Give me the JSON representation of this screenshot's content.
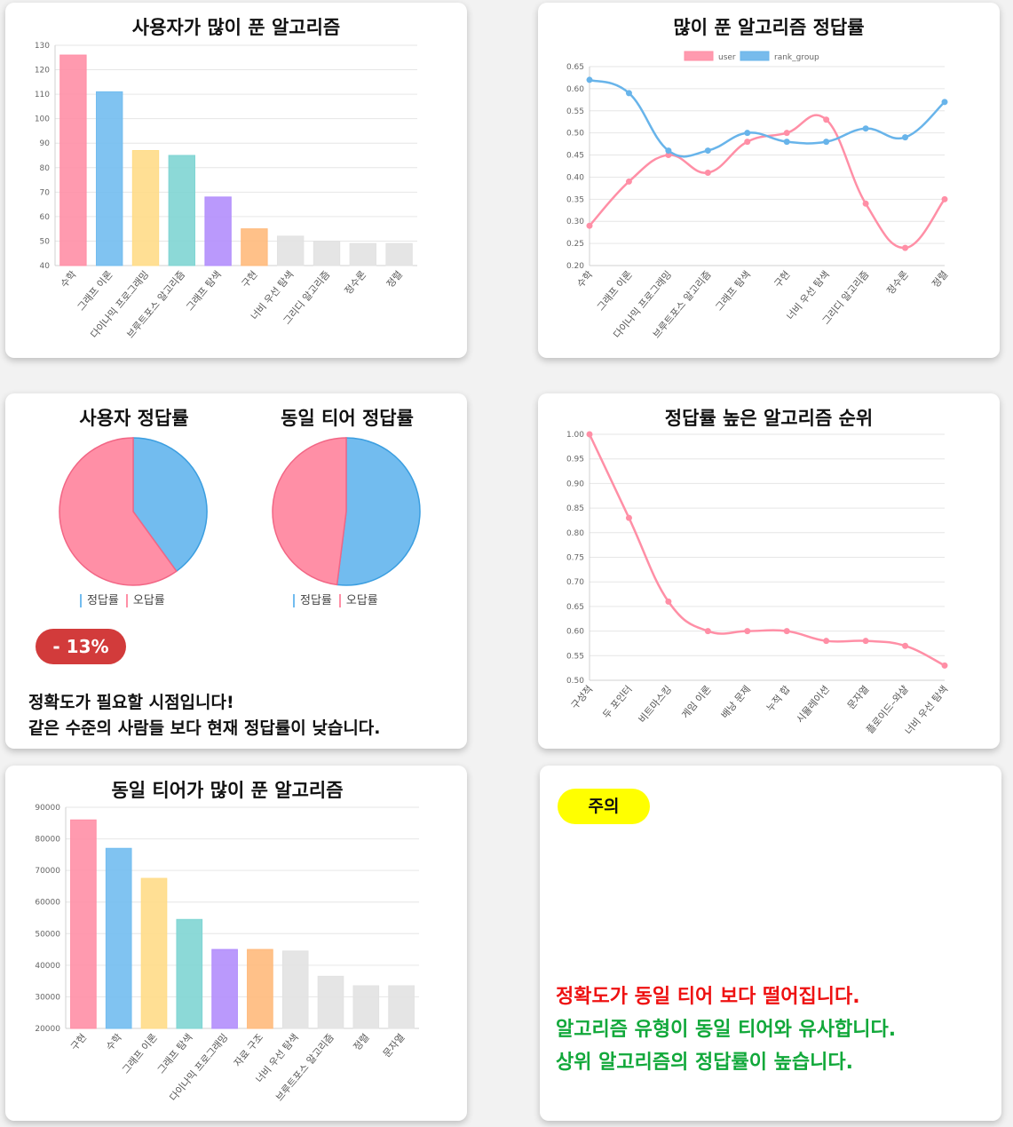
{
  "colors": {
    "palette": [
      "#ff8fa6",
      "#72bcef",
      "#ffdc88",
      "#7fd5d3",
      "#b28efc",
      "#ffba7c",
      "#e2e2e2",
      "#e2e2e2",
      "#e2e2e2",
      "#e2e2e2"
    ],
    "user_line": "#ff8fa6",
    "rank_line": "#68b4ea",
    "pie_correct": "#72bcef",
    "pie_wrong": "#ff8fa6",
    "badge": "#d23b3b",
    "tag": "#ffff00",
    "warn_red": "#ee1111",
    "warn_green": "#11a83a"
  },
  "card1": {
    "title": "사용자가 많이 푼 알고리즘"
  },
  "card2": {
    "title": "많이 푼 알고리즘 정답률"
  },
  "card3": {
    "pie1_title": "사용자 정답률",
    "pie2_title": "동일 티어 정답률",
    "legend": {
      "correct": "정답률",
      "wrong": "오답률"
    },
    "badge": "- 13%",
    "line1": "정확도가 필요할 시점입니다!",
    "line2": "같은 수준의 사람들 보다 현재 정답률이 낮습니다."
  },
  "card4": {
    "title": "정답률 높은 알고리즘 순위"
  },
  "card5": {
    "title": "동일 티어가 많이 푼 알고리즘"
  },
  "card6": {
    "tag": "주의",
    "line1": "정확도가 동일 티어 보다 떨어집니다.",
    "line2": "알고리즘 유형이 동일 티어와 유사합니다.",
    "line3": "상위 알고리즘의 정답률이 높습니다."
  },
  "chart_data": [
    {
      "id": "user-most-solved",
      "type": "bar",
      "title": "사용자가 많이 푼 알고리즘",
      "categories": [
        "수학",
        "그래프 이론",
        "다이나믹 프로그래밍",
        "브루트포스 알고리즘",
        "그래프 탐색",
        "구현",
        "너비 우선 탐색",
        "그리디 알고리즘",
        "정수론",
        "정렬"
      ],
      "values": [
        126,
        111,
        87,
        85,
        68,
        55,
        52,
        50,
        49,
        49
      ],
      "ylim": [
        40,
        130
      ],
      "yticks": [
        40,
        50,
        60,
        70,
        80,
        90,
        100,
        110,
        120,
        130
      ]
    },
    {
      "id": "most-solved-accuracy",
      "type": "line",
      "title": "많이 푼 알고리즘 정답률",
      "categories": [
        "수학",
        "그래프 이론",
        "다이나믹 프로그래밍",
        "브루트포스 알고리즘",
        "그래프 탐색",
        "구현",
        "너비 우선 탐색",
        "그리디 알고리즘",
        "정수론",
        "정렬"
      ],
      "series": [
        {
          "name": "user",
          "values": [
            0.29,
            0.39,
            0.45,
            0.41,
            0.48,
            0.5,
            0.53,
            0.34,
            0.24,
            0.35
          ]
        },
        {
          "name": "rank_group",
          "values": [
            0.62,
            0.59,
            0.46,
            0.46,
            0.5,
            0.48,
            0.48,
            0.51,
            0.49,
            0.57
          ]
        }
      ],
      "ylim": [
        0.2,
        0.65
      ],
      "yticks": [
        "0.20",
        "0.25",
        "0.30",
        "0.35",
        "0.40",
        "0.45",
        "0.50",
        "0.55",
        "0.60",
        "0.65"
      ],
      "legend": "top"
    },
    {
      "id": "user-accuracy",
      "type": "pie",
      "title": "사용자 정답률",
      "labels": [
        "정답률",
        "오답률"
      ],
      "values": [
        0.4,
        0.6
      ]
    },
    {
      "id": "tier-accuracy",
      "type": "pie",
      "title": "동일 티어 정답률",
      "labels": [
        "정답률",
        "오답률"
      ],
      "values": [
        0.52,
        0.48
      ]
    },
    {
      "id": "top-accuracy-rank",
      "type": "line",
      "title": "정답률 높은 알고리즘 순위",
      "categories": [
        "구성적",
        "두 포인터",
        "비트마스킹",
        "게임 이론",
        "배낭 문제",
        "누적 합",
        "시뮬레이션",
        "문자열",
        "플로이드–와샬",
        "너비 우선 탐색"
      ],
      "values": [
        1.0,
        0.83,
        0.66,
        0.6,
        0.6,
        0.6,
        0.58,
        0.58,
        0.57,
        0.53
      ],
      "ylim": [
        0.5,
        1.0
      ],
      "yticks": [
        "0.50",
        "0.55",
        "0.60",
        "0.65",
        "0.70",
        "0.75",
        "0.80",
        "0.85",
        "0.90",
        "0.95",
        "1.00"
      ]
    },
    {
      "id": "tier-most-solved",
      "type": "bar",
      "title": "동일 티어가 많이 푼 알고리즘",
      "categories": [
        "구현",
        "수학",
        "그래프 이론",
        "그래프 탐색",
        "다이나믹 프로그래밍",
        "자료 구조",
        "너비 우선 탐색",
        "브루트포스 알고리즘",
        "정렬",
        "문자열"
      ],
      "values": [
        86000,
        77000,
        67500,
        54500,
        45000,
        45000,
        44500,
        36500,
        33500,
        33500
      ],
      "ylim": [
        20000,
        90000
      ],
      "yticks": [
        20000,
        30000,
        40000,
        50000,
        60000,
        70000,
        80000,
        90000
      ]
    }
  ]
}
